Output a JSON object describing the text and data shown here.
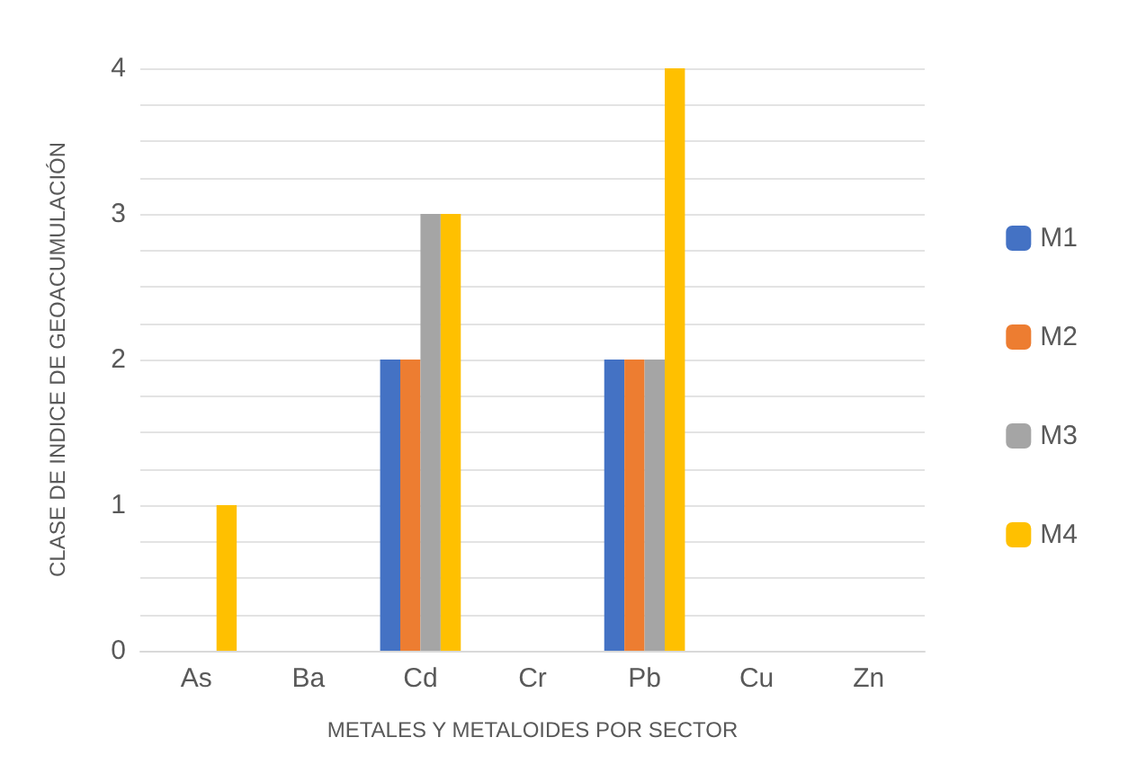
{
  "chart_data": {
    "type": "bar",
    "xlabel": "METALES Y METALOIDES POR SECTOR",
    "ylabel": "CLASE DE INDICE DE GEOACUMULACIÓN",
    "categories": [
      "As",
      "Ba",
      "Cd",
      "Cr",
      "Pb",
      "Cu",
      "Zn"
    ],
    "series": [
      {
        "name": "M1",
        "color": "#4472c4",
        "values": [
          0,
          0,
          2,
          0,
          2,
          0,
          0
        ]
      },
      {
        "name": "M2",
        "color": "#ed7d31",
        "values": [
          0,
          0,
          2,
          0,
          2,
          0,
          0
        ]
      },
      {
        "name": "M3",
        "color": "#a5a5a5",
        "values": [
          0,
          0,
          3,
          0,
          2,
          0,
          0
        ]
      },
      {
        "name": "M4",
        "color": "#ffc000",
        "values": [
          1,
          0,
          3,
          0,
          4,
          0,
          0
        ]
      }
    ],
    "ylim": [
      0,
      4
    ],
    "yticks": [
      0,
      {
        "value": 0.25,
        "label": null
      },
      {
        "value": 0.5,
        "label": null
      },
      {
        "value": 0.75,
        "label": null
      },
      1,
      {
        "value": 1.25,
        "label": null
      },
      {
        "value": 1.5,
        "label": null
      },
      {
        "value": 1.75,
        "label": null
      },
      2,
      {
        "value": 2.25,
        "label": null
      },
      {
        "value": 2.5,
        "label": null
      },
      {
        "value": 2.75,
        "label": null
      },
      3,
      {
        "value": 3.25,
        "label": null
      },
      {
        "value": 3.5,
        "label": null
      },
      {
        "value": 3.75,
        "label": null
      },
      4
    ],
    "grid": true,
    "legend": "right"
  }
}
